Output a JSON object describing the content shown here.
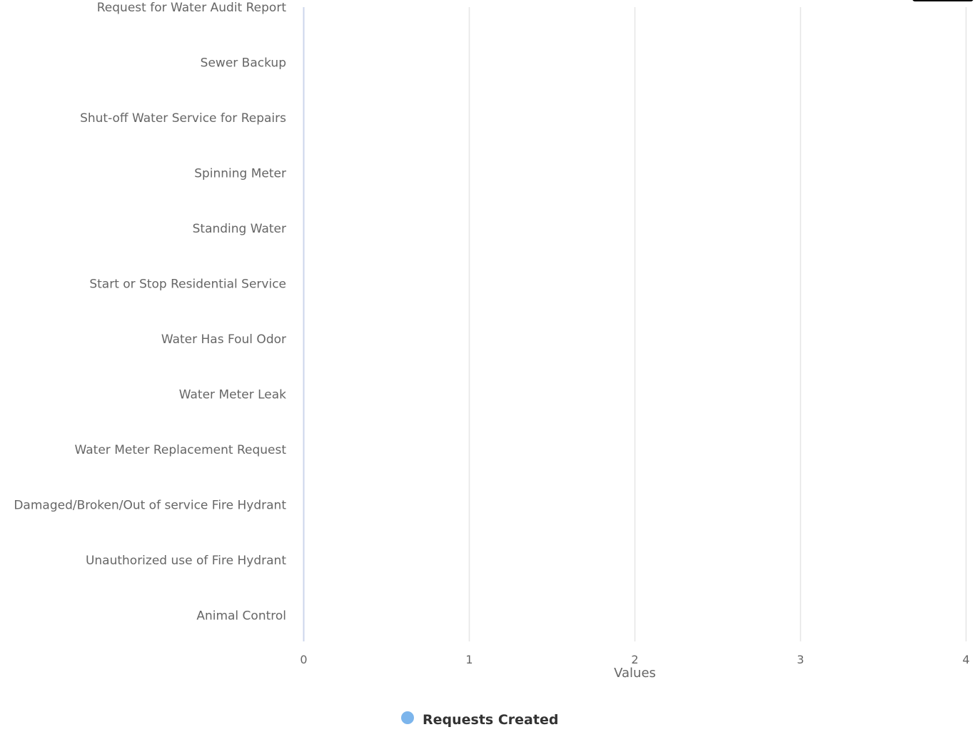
{
  "chart_data": {
    "type": "bar",
    "orientation": "horizontal",
    "categories": [
      "Request for Water Audit Report",
      "Sewer Backup",
      "Shut-off Water Service for Repairs",
      "Spinning Meter",
      "Standing Water",
      "Start or Stop Residential Service",
      "Water Has Foul Odor",
      "Water Meter Leak",
      "Water Meter Replacement Request",
      "Damaged/Broken/Out of service Fire Hydrant",
      "Unauthorized use of Fire Hydrant",
      "Animal Control"
    ],
    "series": [
      {
        "name": "Requests Created",
        "color": "#7cb5ec",
        "values": [
          0,
          0,
          0,
          0,
          0,
          0,
          0,
          0,
          0,
          0,
          0,
          0
        ]
      }
    ],
    "xlabel": "Values",
    "xlim": [
      0,
      4
    ],
    "x_ticks": [
      "0",
      "1",
      "2",
      "3",
      "4"
    ],
    "grid": true,
    "legend_position": "bottom-center",
    "colors": {
      "grid": "#e6e6e6",
      "axis_line": "#ccd6eb",
      "label": "#666666",
      "legend_text": "#333333"
    }
  }
}
